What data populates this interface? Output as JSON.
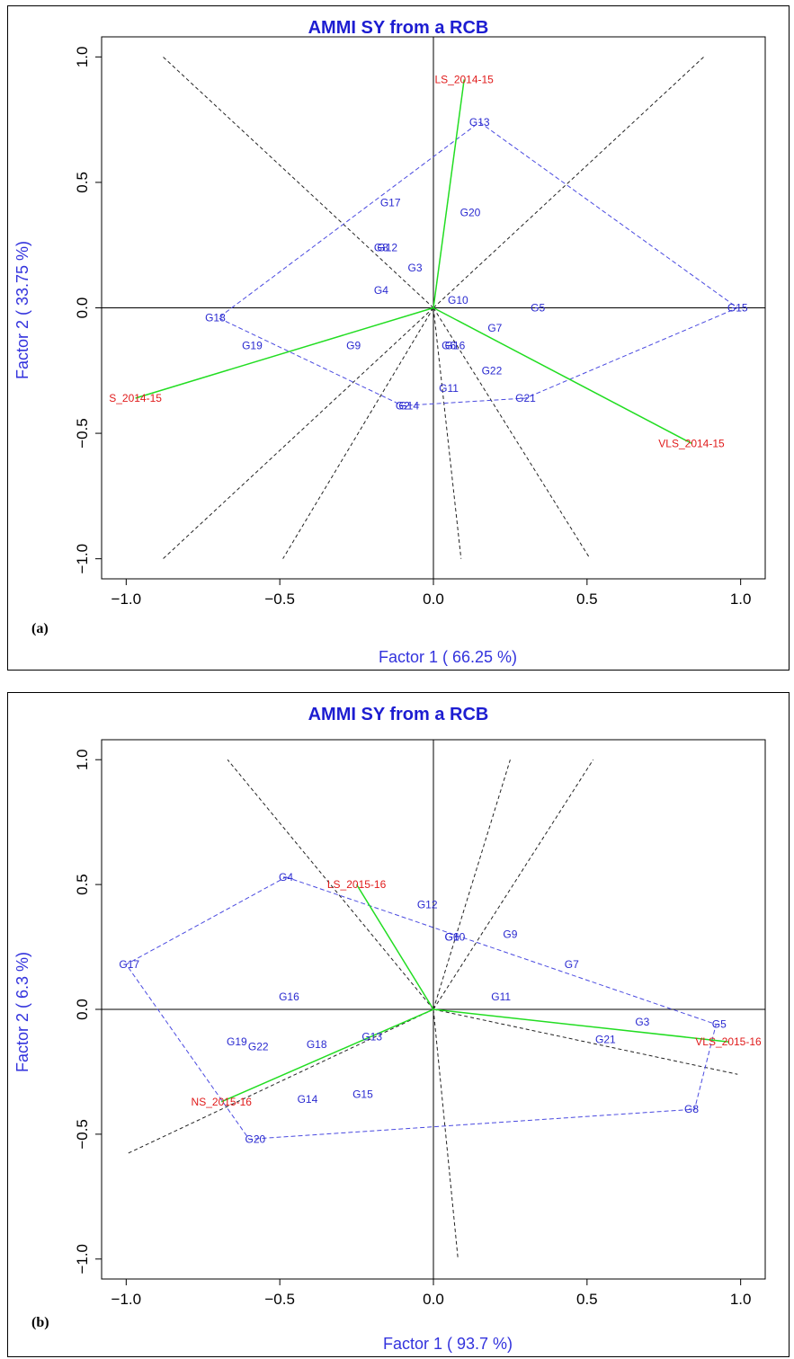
{
  "chart_data": [
    {
      "type": "scatter",
      "panel_label": "(a)",
      "title": "AMMI SY from a RCB",
      "xlabel": "Factor 1 ( 66.25 %)",
      "ylabel": "Factor 2 ( 33.75 %)",
      "xlim": [
        -1.08,
        1.08
      ],
      "ylim": [
        -1.08,
        1.08
      ],
      "xticks": [
        -1.0,
        -0.5,
        0.0,
        0.5,
        1.0
      ],
      "yticks": [
        -1.0,
        -0.5,
        0.0,
        0.5,
        1.0
      ],
      "xtick_labels": [
        "−1.0",
        "−0.5",
        "0.0",
        "0.5",
        "1.0"
      ],
      "ytick_labels": [
        "−1.0",
        "−0.5",
        "0.0",
        "0.5",
        "1.0"
      ],
      "genotypes": [
        {
          "label": "G13",
          "x": 0.15,
          "y": 0.74
        },
        {
          "label": "G20",
          "x": 0.12,
          "y": 0.38
        },
        {
          "label": "G17",
          "x": -0.14,
          "y": 0.42
        },
        {
          "label": "G8",
          "x": -0.17,
          "y": 0.24
        },
        {
          "label": "G12",
          "x": -0.15,
          "y": 0.24
        },
        {
          "label": "G3",
          "x": -0.06,
          "y": 0.16
        },
        {
          "label": "G4",
          "x": -0.17,
          "y": 0.07
        },
        {
          "label": "G10",
          "x": 0.08,
          "y": 0.03
        },
        {
          "label": "G5",
          "x": 0.34,
          "y": 0.0
        },
        {
          "label": "G15",
          "x": 0.99,
          "y": 0.0
        },
        {
          "label": "G18",
          "x": -0.71,
          "y": -0.04
        },
        {
          "label": "G7",
          "x": 0.2,
          "y": -0.08
        },
        {
          "label": "G19",
          "x": -0.59,
          "y": -0.15
        },
        {
          "label": "G9",
          "x": -0.26,
          "y": -0.15
        },
        {
          "label": "G6",
          "x": 0.05,
          "y": -0.15
        },
        {
          "label": "G16",
          "x": 0.07,
          "y": -0.15
        },
        {
          "label": "G22",
          "x": 0.19,
          "y": -0.25
        },
        {
          "label": "G11",
          "x": 0.05,
          "y": -0.32
        },
        {
          "label": "G21",
          "x": 0.3,
          "y": -0.36
        },
        {
          "label": "G2",
          "x": -0.1,
          "y": -0.39
        },
        {
          "label": "G14",
          "x": -0.08,
          "y": -0.39
        }
      ],
      "environments": [
        {
          "label": "LS_2014-15",
          "x": 0.1,
          "y": 0.91
        },
        {
          "label": "S_2014-15",
          "x": -0.97,
          "y": -0.36
        },
        {
          "label": "VLS_2014-15",
          "x": 0.84,
          "y": -0.54
        }
      ],
      "hull": [
        [
          0.15,
          0.74
        ],
        [
          0.99,
          0.0
        ],
        [
          0.3,
          -0.36
        ],
        [
          -0.1,
          -0.39
        ],
        [
          -0.7,
          -0.04
        ],
        [
          0.15,
          0.74
        ]
      ],
      "sector_lines": [
        [
          -0.88,
          1.0
        ],
        [
          0.88,
          1.0
        ],
        [
          -0.88,
          -1.0
        ],
        [
          -0.49,
          -1.0
        ],
        [
          0.09,
          -1.0
        ],
        [
          0.51,
          -1.0
        ]
      ]
    },
    {
      "type": "scatter",
      "panel_label": "(b)",
      "title": "AMMI SY from a RCB",
      "xlabel": "Factor 1 ( 93.7 %)",
      "ylabel": "Factor 2 ( 6.3 %)",
      "xlim": [
        -1.08,
        1.08
      ],
      "ylim": [
        -1.08,
        1.08
      ],
      "xticks": [
        -1.0,
        -0.5,
        0.0,
        0.5,
        1.0
      ],
      "yticks": [
        -1.0,
        -0.5,
        0.0,
        0.5,
        1.0
      ],
      "xtick_labels": [
        "−1.0",
        "−0.5",
        "0.0",
        "0.5",
        "1.0"
      ],
      "ytick_labels": [
        "−1.0",
        "−0.5",
        "0.0",
        "0.5",
        "1.0"
      ],
      "genotypes": [
        {
          "label": "G4",
          "x": -0.48,
          "y": 0.53
        },
        {
          "label": "G12",
          "x": -0.02,
          "y": 0.42
        },
        {
          "label": "G6",
          "x": 0.06,
          "y": 0.29
        },
        {
          "label": "G10",
          "x": 0.07,
          "y": 0.29
        },
        {
          "label": "G9",
          "x": 0.25,
          "y": 0.3
        },
        {
          "label": "G7",
          "x": 0.45,
          "y": 0.18
        },
        {
          "label": "G17",
          "x": -0.99,
          "y": 0.18
        },
        {
          "label": "G16",
          "x": -0.47,
          "y": 0.05
        },
        {
          "label": "G11",
          "x": 0.22,
          "y": 0.05
        },
        {
          "label": "G5",
          "x": 0.93,
          "y": -0.06
        },
        {
          "label": "G3",
          "x": 0.68,
          "y": -0.05
        },
        {
          "label": "G21",
          "x": 0.56,
          "y": -0.12
        },
        {
          "label": "G13",
          "x": -0.2,
          "y": -0.11
        },
        {
          "label": "G19",
          "x": -0.64,
          "y": -0.13
        },
        {
          "label": "G22",
          "x": -0.57,
          "y": -0.15
        },
        {
          "label": "G18",
          "x": -0.38,
          "y": -0.14
        },
        {
          "label": "G14",
          "x": -0.41,
          "y": -0.36
        },
        {
          "label": "G15",
          "x": -0.23,
          "y": -0.34
        },
        {
          "label": "G8",
          "x": 0.84,
          "y": -0.4
        },
        {
          "label": "G20",
          "x": -0.58,
          "y": -0.52
        }
      ],
      "environments": [
        {
          "label": "LS_2015-16",
          "x": -0.25,
          "y": 0.5
        },
        {
          "label": "NS_2015-16",
          "x": -0.69,
          "y": -0.37
        },
        {
          "label": "VLS_2015-16",
          "x": 0.96,
          "y": -0.13
        }
      ],
      "hull": [
        [
          -0.48,
          0.53
        ],
        [
          0.92,
          -0.06
        ],
        [
          0.85,
          -0.4
        ],
        [
          -0.6,
          -0.52
        ],
        [
          -1.0,
          0.18
        ],
        [
          -0.48,
          0.53
        ]
      ],
      "sector_lines": [
        [
          -0.67,
          1.0
        ],
        [
          0.25,
          1.0
        ],
        [
          0.52,
          1.0
        ],
        [
          -1.0,
          -0.58
        ],
        [
          0.08,
          -1.0
        ],
        [
          0.99,
          -0.26
        ]
      ]
    }
  ]
}
